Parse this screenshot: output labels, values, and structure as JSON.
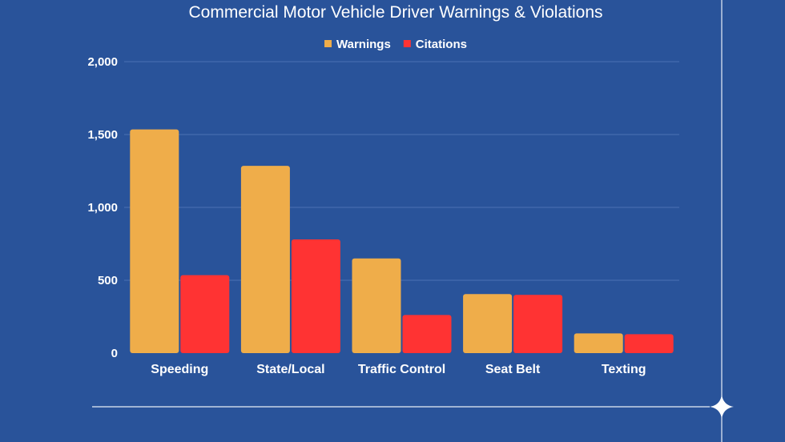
{
  "chart_data": {
    "type": "bar",
    "title": "Commercial Motor Vehicle Driver Warnings & Violations",
    "categories": [
      "Speeding",
      "State/Local",
      "Traffic Control",
      "Seat Belt",
      "Texting"
    ],
    "series": [
      {
        "name": "Warnings",
        "color": "#efad4a",
        "values": [
          1535,
          1285,
          650,
          405,
          135
        ]
      },
      {
        "name": "Citations",
        "color": "#ff3333",
        "values": [
          535,
          780,
          262,
          400,
          130
        ]
      }
    ],
    "y_ticks": [
      "0",
      "500",
      "1,000",
      "1,500",
      "2,000"
    ],
    "ylim": [
      0,
      2000
    ],
    "xlabel": "",
    "ylabel": "",
    "legend_position": "top-center",
    "grid": true
  }
}
